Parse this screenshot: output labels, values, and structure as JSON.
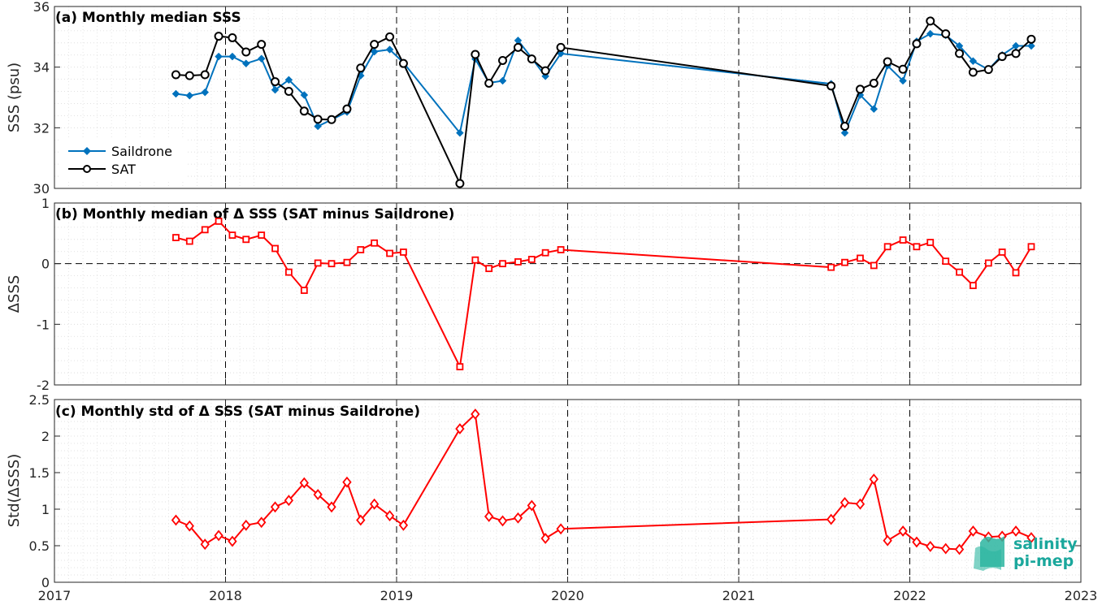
{
  "chart_data": [
    {
      "id": "a",
      "type": "line",
      "title": "(a) Monthly median SSS",
      "ylabel": "SSS (psu)",
      "ylim": [
        30,
        36
      ],
      "yticks": [
        "30",
        "32",
        "34",
        "36"
      ],
      "xlim": [
        2017,
        2023
      ],
      "xticks": [
        "2017",
        "2018",
        "2019",
        "2020",
        "2021",
        "2022",
        "2023"
      ],
      "legend": "left",
      "colors": [
        "#0072BD",
        "#000000"
      ],
      "series": [
        {
          "name": "Saildrone",
          "x": [
            2017.71,
            2017.79,
            2017.88,
            2017.96,
            2018.04,
            2018.12,
            2018.21,
            2018.29,
            2018.37,
            2018.46,
            2018.54,
            2018.62,
            2018.71,
            2018.79,
            2018.87,
            2018.96,
            2019.04,
            2019.37,
            2019.46,
            2019.54,
            2019.62,
            2019.71,
            2019.79,
            2019.87,
            2019.96,
            2021.54,
            2021.62,
            2021.71,
            2021.79,
            2021.87,
            2021.96,
            2022.04,
            2022.12,
            2022.21,
            2022.29,
            2022.37,
            2022.46,
            2022.54,
            2022.62,
            2022.71
          ],
          "y": [
            33.12,
            33.06,
            33.17,
            34.35,
            34.35,
            34.12,
            34.28,
            33.25,
            33.58,
            33.08,
            32.05,
            32.27,
            32.52,
            33.72,
            34.51,
            34.58,
            34.15,
            31.83,
            34.27,
            33.48,
            33.55,
            34.88,
            34.3,
            33.7,
            34.45,
            33.45,
            31.83,
            33.08,
            32.62,
            34.05,
            33.55,
            34.85,
            35.1,
            35.05,
            34.7,
            34.2,
            33.92,
            34.4,
            34.7,
            34.7
          ]
        },
        {
          "name": "SAT",
          "x": [
            2017.71,
            2017.79,
            2017.88,
            2017.96,
            2018.04,
            2018.12,
            2018.21,
            2018.29,
            2018.37,
            2018.46,
            2018.54,
            2018.62,
            2018.71,
            2018.79,
            2018.87,
            2018.96,
            2019.04,
            2019.37,
            2019.46,
            2019.54,
            2019.62,
            2019.71,
            2019.79,
            2019.87,
            2019.96,
            2021.54,
            2021.62,
            2021.71,
            2021.79,
            2021.87,
            2021.96,
            2022.04,
            2022.12,
            2022.21,
            2022.29,
            2022.37,
            2022.46,
            2022.54,
            2022.62,
            2022.71
          ],
          "y": [
            33.75,
            33.72,
            33.75,
            35.02,
            34.97,
            34.5,
            34.75,
            33.52,
            33.2,
            32.55,
            32.28,
            32.27,
            32.62,
            33.97,
            34.75,
            35.0,
            34.12,
            30.16,
            34.42,
            33.47,
            34.22,
            34.65,
            34.27,
            33.88,
            34.65,
            33.38,
            32.05,
            33.27,
            33.47,
            34.18,
            33.93,
            34.77,
            35.52,
            35.1,
            34.45,
            33.83,
            33.92,
            34.35,
            34.45,
            34.92
          ]
        }
      ]
    },
    {
      "id": "b",
      "type": "line",
      "title": "(b) Monthly median of Δ SSS (SAT minus Saildrone)",
      "ylabel": "ΔSSS",
      "ylim": [
        -2,
        1
      ],
      "yticks": [
        "-2",
        "-1",
        "0",
        "1"
      ],
      "reference_line": 0,
      "xlim": [
        2017,
        2023
      ],
      "xticks": [
        "2017",
        "2018",
        "2019",
        "2020",
        "2021",
        "2022",
        "2023"
      ],
      "colors": [
        "#FF0000"
      ],
      "series": [
        {
          "x": [
            2017.71,
            2017.79,
            2017.88,
            2017.96,
            2018.04,
            2018.12,
            2018.21,
            2018.29,
            2018.37,
            2018.46,
            2018.54,
            2018.62,
            2018.71,
            2018.79,
            2018.87,
            2018.96,
            2019.04,
            2019.37,
            2019.46,
            2019.54,
            2019.62,
            2019.71,
            2019.79,
            2019.87,
            2019.96,
            2021.54,
            2021.62,
            2021.71,
            2021.79,
            2021.87,
            2021.96,
            2022.04,
            2022.12,
            2022.21,
            2022.29,
            2022.37,
            2022.46,
            2022.54,
            2022.62,
            2022.71
          ],
          "y": [
            0.43,
            0.37,
            0.56,
            0.7,
            0.47,
            0.4,
            0.47,
            0.25,
            -0.14,
            -0.44,
            0.01,
            0.0,
            0.02,
            0.23,
            0.34,
            0.17,
            0.19,
            -1.7,
            0.06,
            -0.08,
            0.0,
            0.03,
            0.07,
            0.18,
            0.23,
            -0.06,
            0.02,
            0.09,
            -0.03,
            0.28,
            0.39,
            0.28,
            0.35,
            0.04,
            -0.14,
            -0.36,
            0.01,
            0.19,
            -0.15,
            0.28
          ]
        }
      ]
    },
    {
      "id": "c",
      "type": "line",
      "title": "(c) Monthly std of Δ SSS (SAT minus Saildrone)",
      "ylabel": "Std(ΔSSS)",
      "ylim": [
        0,
        2.5
      ],
      "yticks": [
        "0",
        "0.5",
        "1",
        "1.5",
        "2",
        "2.5"
      ],
      "xlim": [
        2017,
        2023
      ],
      "xticks": [
        "2017",
        "2018",
        "2019",
        "2020",
        "2021",
        "2022",
        "2023"
      ],
      "colors": [
        "#FF0000"
      ],
      "series": [
        {
          "x": [
            2017.71,
            2017.79,
            2017.88,
            2017.96,
            2018.04,
            2018.12,
            2018.21,
            2018.29,
            2018.37,
            2018.46,
            2018.54,
            2018.62,
            2018.71,
            2018.79,
            2018.87,
            2018.96,
            2019.04,
            2019.37,
            2019.46,
            2019.54,
            2019.62,
            2019.71,
            2019.79,
            2019.87,
            2019.96,
            2021.54,
            2021.62,
            2021.71,
            2021.79,
            2021.87,
            2021.96,
            2022.04,
            2022.12,
            2022.21,
            2022.29,
            2022.37,
            2022.46,
            2022.54,
            2022.62,
            2022.71
          ],
          "y": [
            0.85,
            0.77,
            0.52,
            0.64,
            0.56,
            0.78,
            0.82,
            1.03,
            1.12,
            1.36,
            1.2,
            1.03,
            1.37,
            0.85,
            1.07,
            0.91,
            0.78,
            2.1,
            2.3,
            0.9,
            0.84,
            0.88,
            1.05,
            0.6,
            0.73,
            0.86,
            1.09,
            1.07,
            1.41,
            0.57,
            0.7,
            0.55,
            0.49,
            0.46,
            0.45,
            0.7,
            0.62,
            0.63,
            0.7,
            0.61
          ]
        }
      ]
    }
  ],
  "logo": {
    "line1": "salinity",
    "line2": "pi-mep",
    "colors": {
      "text": "#1aa79c",
      "mark": "#2bb5a0"
    }
  }
}
